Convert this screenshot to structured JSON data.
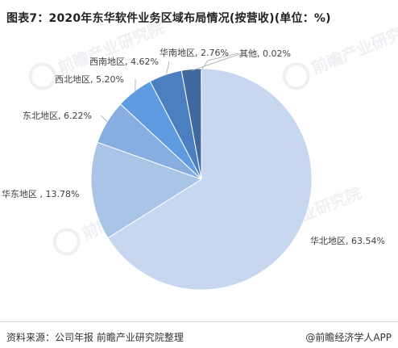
{
  "title": "图表7：2020年东华软件业务区域布局情况(按营收)(单位：%)",
  "source": "资料来源：公司年报 前瞻产业研究院整理",
  "brand": "@前瞻经济学人APP",
  "watermark": {
    "text": "前瞻产业研究院"
  },
  "colors": {
    "background": "#ffffff",
    "slice_edge": "#ffffff",
    "leader_line": "#a8a8a8"
  },
  "chart_data": {
    "type": "pie",
    "title": "图表7：2020年东华软件业务区域布局情况(按营收)(单位：%)",
    "start_angle": "12 o'clock",
    "direction": "clockwise",
    "slices": [
      {
        "label": "华北地区",
        "value": 63.54,
        "display": "华北地区, 63.54%",
        "color": "#c6d7ef"
      },
      {
        "label": "华东地区",
        "value": 13.78,
        "display": "华东地区 , 13.78%",
        "color": "#aac4e8"
      },
      {
        "label": "东北地区",
        "value": 6.22,
        "display": "东北地区, 6.22%",
        "color": "#86aee0"
      },
      {
        "label": "西北地区",
        "value": 5.2,
        "display": "西北地区, 5.20%",
        "color": "#5f9be0"
      },
      {
        "label": "西南地区",
        "value": 4.62,
        "display": "西南地区, 4.62%",
        "color": "#4b7fc0"
      },
      {
        "label": "华南地区",
        "value": 2.76,
        "display": "华南地区, 2.76%",
        "color": "#41689e"
      },
      {
        "label": "其他",
        "value": 0.02,
        "display": "其他, 0.02%",
        "color": "#2f4f86"
      }
    ]
  }
}
